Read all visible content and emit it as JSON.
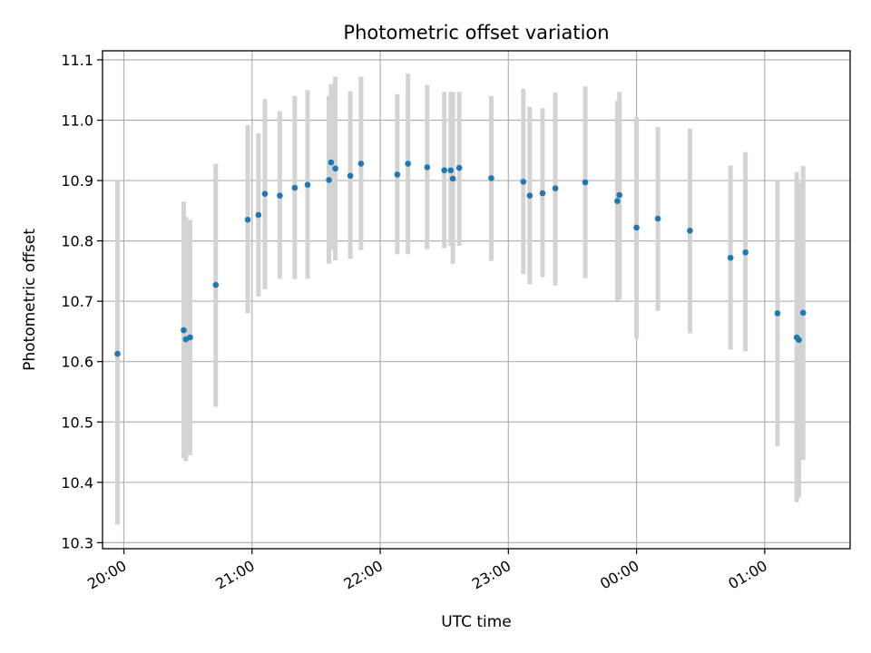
{
  "chart_data": {
    "type": "scatter",
    "title": "Photometric offset variation",
    "xlabel": "UTC time",
    "ylabel": "Photometric offset",
    "xlim": [
      "19:50",
      "01:40"
    ],
    "ylim": [
      10.29,
      11.115
    ],
    "x_ticks": [
      "20:00",
      "21:00",
      "22:00",
      "23:00",
      "00:00",
      "01:00"
    ],
    "y_ticks": [
      "10.3",
      "10.4",
      "10.5",
      "10.6",
      "10.7",
      "10.8",
      "10.9",
      "11.0",
      "11.1"
    ],
    "grid": true,
    "series": [
      {
        "error_style": "errorbar",
        "error_color": "#d3d3d3",
        "color": "#1f77b4",
        "points": [
          {
            "x": "19:57",
            "y": 10.613,
            "lo": 10.33,
            "hi": 10.9
          },
          {
            "x": "20:28",
            "y": 10.652,
            "lo": 10.44,
            "hi": 10.865
          },
          {
            "x": "20:29",
            "y": 10.637,
            "lo": 10.435,
            "hi": 10.84
          },
          {
            "x": "20:31",
            "y": 10.64,
            "lo": 10.445,
            "hi": 10.835
          },
          {
            "x": "20:43",
            "y": 10.727,
            "lo": 10.525,
            "hi": 10.928
          },
          {
            "x": "20:58",
            "y": 10.835,
            "lo": 10.68,
            "hi": 10.992
          },
          {
            "x": "21:03",
            "y": 10.843,
            "lo": 10.708,
            "hi": 10.978
          },
          {
            "x": "21:06",
            "y": 10.878,
            "lo": 10.72,
            "hi": 11.035
          },
          {
            "x": "21:13",
            "y": 10.875,
            "lo": 10.737,
            "hi": 11.015
          },
          {
            "x": "21:20",
            "y": 10.888,
            "lo": 10.737,
            "hi": 11.04
          },
          {
            "x": "21:26",
            "y": 10.893,
            "lo": 10.737,
            "hi": 11.05
          },
          {
            "x": "21:36",
            "y": 10.901,
            "lo": 10.762,
            "hi": 11.04
          },
          {
            "x": "21:37",
            "y": 10.93,
            "lo": 10.785,
            "hi": 11.06
          },
          {
            "x": "21:39",
            "y": 10.92,
            "lo": 10.768,
            "hi": 11.072
          },
          {
            "x": "21:46",
            "y": 10.908,
            "lo": 10.77,
            "hi": 11.048
          },
          {
            "x": "21:51",
            "y": 10.928,
            "lo": 10.785,
            "hi": 11.072
          },
          {
            "x": "22:08",
            "y": 10.91,
            "lo": 10.778,
            "hi": 11.043
          },
          {
            "x": "22:13",
            "y": 10.928,
            "lo": 10.778,
            "hi": 11.077
          },
          {
            "x": "22:22",
            "y": 10.922,
            "lo": 10.786,
            "hi": 11.058
          },
          {
            "x": "22:30",
            "y": 10.917,
            "lo": 10.788,
            "hi": 11.047
          },
          {
            "x": "22:33",
            "y": 10.917,
            "lo": 10.792,
            "hi": 11.047
          },
          {
            "x": "22:34",
            "y": 10.903,
            "lo": 10.762,
            "hi": 11.047
          },
          {
            "x": "22:37",
            "y": 10.921,
            "lo": 10.792,
            "hi": 11.047
          },
          {
            "x": "22:52",
            "y": 10.904,
            "lo": 10.767,
            "hi": 11.04
          },
          {
            "x": "23:07",
            "y": 10.898,
            "lo": 10.745,
            "hi": 11.052
          },
          {
            "x": "23:10",
            "y": 10.875,
            "lo": 10.728,
            "hi": 11.022
          },
          {
            "x": "23:16",
            "y": 10.879,
            "lo": 10.74,
            "hi": 11.02
          },
          {
            "x": "23:22",
            "y": 10.887,
            "lo": 10.726,
            "hi": 11.046
          },
          {
            "x": "23:36",
            "y": 10.897,
            "lo": 10.738,
            "hi": 11.056
          },
          {
            "x": "23:51",
            "y": 10.866,
            "lo": 10.7,
            "hi": 11.032
          },
          {
            "x": "23:52",
            "y": 10.876,
            "lo": 10.703,
            "hi": 11.047
          },
          {
            "x": "00:00",
            "y": 10.822,
            "lo": 10.638,
            "hi": 11.005
          },
          {
            "x": "00:10",
            "y": 10.837,
            "lo": 10.684,
            "hi": 10.989
          },
          {
            "x": "00:25",
            "y": 10.817,
            "lo": 10.647,
            "hi": 10.986
          },
          {
            "x": "00:44",
            "y": 10.772,
            "lo": 10.62,
            "hi": 10.925
          },
          {
            "x": "00:51",
            "y": 10.781,
            "lo": 10.617,
            "hi": 10.947
          },
          {
            "x": "01:06",
            "y": 10.68,
            "lo": 10.46,
            "hi": 10.9
          },
          {
            "x": "01:15",
            "y": 10.64,
            "lo": 10.367,
            "hi": 10.914
          },
          {
            "x": "01:16",
            "y": 10.636,
            "lo": 10.375,
            "hi": 10.897
          },
          {
            "x": "01:18",
            "y": 10.681,
            "lo": 10.437,
            "hi": 10.924
          }
        ]
      }
    ]
  },
  "colors": {
    "marker": "#1f77b4",
    "errorbar": "#d3d3d3",
    "grid": "#b0b0b0",
    "axes": "#000000"
  }
}
